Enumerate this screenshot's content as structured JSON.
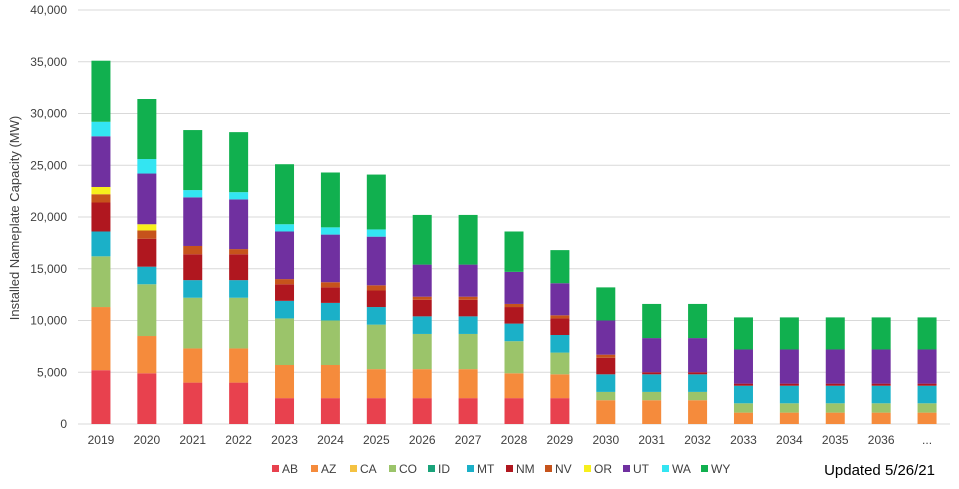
{
  "note": "Updated 5/26/21",
  "chart_data": {
    "type": "bar",
    "stacked": true,
    "ylabel": "Installed Nameplate Capacity (MW)",
    "ylim": [
      0,
      40000
    ],
    "yticks": [
      "0",
      "5,000",
      "10,000",
      "15,000",
      "20,000",
      "25,000",
      "30,000",
      "35,000",
      "40,000"
    ],
    "grid": true,
    "legend_position": "bottom",
    "categories": [
      "2019",
      "2020",
      "2021",
      "2022",
      "2023",
      "2024",
      "2025",
      "2026",
      "2027",
      "2028",
      "2029",
      "2030",
      "2031",
      "2032",
      "2033",
      "2034",
      "2035",
      "2036",
      "..."
    ],
    "series": [
      {
        "name": "AB",
        "color": "#e8414e",
        "values": [
          5200,
          4900,
          4000,
          4000,
          2500,
          2500,
          2500,
          2500,
          2500,
          2500,
          2500,
          0,
          0,
          0,
          0,
          0,
          0,
          0,
          0
        ]
      },
      {
        "name": "AZ",
        "color": "#f58b3c",
        "values": [
          6100,
          3600,
          3300,
          3300,
          3200,
          3200,
          2800,
          2800,
          2800,
          2400,
          2300,
          2300,
          2300,
          2300,
          1100,
          1100,
          1100,
          1100,
          1100
        ]
      },
      {
        "name": "CA",
        "color": "#f4c242",
        "values": [
          0,
          0,
          0,
          0,
          0,
          0,
          0,
          0,
          0,
          0,
          0,
          0,
          0,
          0,
          0,
          0,
          0,
          0,
          0
        ]
      },
      {
        "name": "CO",
        "color": "#9bc46a",
        "values": [
          4900,
          5000,
          4900,
          4900,
          4500,
          4300,
          4300,
          3400,
          3400,
          3100,
          2100,
          800,
          800,
          800,
          900,
          900,
          900,
          900,
          900
        ]
      },
      {
        "name": "ID",
        "color": "#1aa37a",
        "values": [
          0,
          0,
          0,
          0,
          0,
          0,
          0,
          0,
          0,
          0,
          0,
          0,
          0,
          0,
          0,
          0,
          0,
          0,
          0
        ]
      },
      {
        "name": "MT",
        "color": "#1bb0c8",
        "values": [
          2400,
          1700,
          1700,
          1700,
          1700,
          1700,
          1700,
          1700,
          1700,
          1700,
          1700,
          1700,
          1700,
          1700,
          1700,
          1700,
          1700,
          1700,
          1700
        ]
      },
      {
        "name": "NM",
        "color": "#b0171f",
        "values": [
          2800,
          2700,
          2500,
          2500,
          1600,
          1500,
          1600,
          1600,
          1600,
          1600,
          1600,
          1600,
          200,
          200,
          200,
          200,
          200,
          200,
          200
        ]
      },
      {
        "name": "NV",
        "color": "#c6531b",
        "values": [
          800,
          800,
          800,
          500,
          500,
          500,
          500,
          300,
          300,
          300,
          300,
          300,
          0,
          0,
          0,
          0,
          0,
          0,
          0
        ]
      },
      {
        "name": "OR",
        "color": "#f7ef1c",
        "values": [
          700,
          600,
          0,
          0,
          0,
          0,
          0,
          0,
          0,
          0,
          0,
          0,
          0,
          0,
          0,
          0,
          0,
          0,
          0
        ]
      },
      {
        "name": "UT",
        "color": "#7030a0",
        "values": [
          4900,
          4900,
          4700,
          4800,
          4600,
          4600,
          4700,
          3100,
          3100,
          3100,
          3100,
          3300,
          3300,
          3300,
          3300,
          3300,
          3300,
          3300,
          3300
        ]
      },
      {
        "name": "WA",
        "color": "#33e5f2",
        "values": [
          1400,
          1400,
          700,
          700,
          700,
          700,
          700,
          0,
          0,
          0,
          0,
          0,
          0,
          0,
          0,
          0,
          0,
          0,
          0
        ]
      },
      {
        "name": "WY",
        "color": "#11b04f",
        "values": [
          5900,
          5800,
          5800,
          5800,
          5800,
          5300,
          5300,
          4800,
          4800,
          3900,
          3200,
          3200,
          3300,
          3300,
          3100,
          3100,
          3100,
          3100,
          3100
        ]
      }
    ]
  }
}
